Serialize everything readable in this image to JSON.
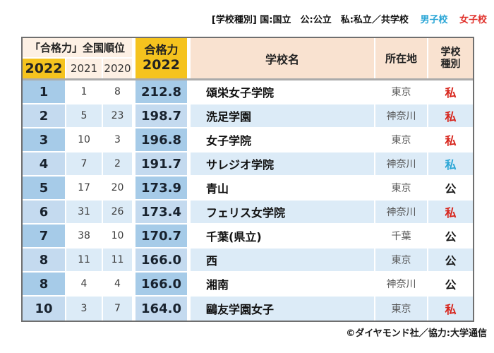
{
  "legend": {
    "types_label": "[学校種別] 国:国立　公:公立　私:私立／共学校",
    "boys_label": "男子校",
    "girls_label": "女子校"
  },
  "header": {
    "rank_group": "「合格力」全国順位",
    "y2022": "2022",
    "y2021": "2021",
    "y2020": "2020",
    "power_line1": "合格力",
    "power_line2": "2022",
    "school": "学校名",
    "location": "所在地",
    "type_line1": "学校",
    "type_line2": "種別"
  },
  "rows": [
    {
      "rank_2022": "1",
      "rank_2021": "1",
      "rank_2020": "8",
      "score": "212.8",
      "school": "頌栄女子学院",
      "location": "東京",
      "type": "私",
      "type_color": "red"
    },
    {
      "rank_2022": "2",
      "rank_2021": "5",
      "rank_2020": "23",
      "score": "198.7",
      "school": "洗足学園",
      "location": "神奈川",
      "type": "私",
      "type_color": "red"
    },
    {
      "rank_2022": "3",
      "rank_2021": "10",
      "rank_2020": "3",
      "score": "196.8",
      "school": "女子学院",
      "location": "東京",
      "type": "私",
      "type_color": "red"
    },
    {
      "rank_2022": "4",
      "rank_2021": "7",
      "rank_2020": "2",
      "score": "191.7",
      "school": "サレジオ学院",
      "location": "神奈川",
      "type": "私",
      "type_color": "blue"
    },
    {
      "rank_2022": "5",
      "rank_2021": "17",
      "rank_2020": "20",
      "score": "173.9",
      "school": "青山",
      "location": "東京",
      "type": "公",
      "type_color": "black"
    },
    {
      "rank_2022": "6",
      "rank_2021": "31",
      "rank_2020": "26",
      "score": "173.4",
      "school": "フェリス女学院",
      "location": "神奈川",
      "type": "私",
      "type_color": "red"
    },
    {
      "rank_2022": "7",
      "rank_2021": "38",
      "rank_2020": "10",
      "score": "170.7",
      "school": "千葉(県立)",
      "location": "千葉",
      "type": "公",
      "type_color": "black"
    },
    {
      "rank_2022": "8",
      "rank_2021": "11",
      "rank_2020": "11",
      "score": "166.0",
      "school": "西",
      "location": "東京",
      "type": "公",
      "type_color": "black"
    },
    {
      "rank_2022": "8",
      "rank_2021": "4",
      "rank_2020": "4",
      "score": "166.0",
      "school": "湘南",
      "location": "神奈川",
      "type": "公",
      "type_color": "black"
    },
    {
      "rank_2022": "10",
      "rank_2021": "3",
      "rank_2020": "7",
      "score": "164.0",
      "school": "鷗友学園女子",
      "location": "東京",
      "type": "私",
      "type_color": "red"
    }
  ],
  "credit": "©ダイヤモンド社／協力:大学通信",
  "colors": {
    "gold": "#f5c31e",
    "peach_light": "#fdf0e4",
    "peach_dark": "#f9e2d0",
    "row_highlight_blue": "#a6cbe8",
    "row_highlight_blue_alt": "#c4daef",
    "row_light_blue": "#dcebf7",
    "boys_blue": "#2aa6d6",
    "girls_red": "#e0302a",
    "private_red": "#d7251c",
    "separator_gray": "#ababab"
  },
  "chart_data": {
    "type": "table",
    "title": "「合格力」全国順位 2022",
    "columns": [
      "2022順位",
      "2021順位",
      "2020順位",
      "合格力2022",
      "学校名",
      "所在地",
      "学校種別"
    ],
    "rows": [
      [
        "1",
        "1",
        "8",
        "212.8",
        "頌栄女子学院",
        "東京",
        "私(女子校)"
      ],
      [
        "2",
        "5",
        "23",
        "198.7",
        "洗足学園",
        "神奈川",
        "私(女子校)"
      ],
      [
        "3",
        "10",
        "3",
        "196.8",
        "女子学院",
        "東京",
        "私(女子校)"
      ],
      [
        "4",
        "7",
        "2",
        "191.7",
        "サレジオ学院",
        "神奈川",
        "私(男子校)"
      ],
      [
        "5",
        "17",
        "20",
        "173.9",
        "青山",
        "東京",
        "公"
      ],
      [
        "6",
        "31",
        "26",
        "173.4",
        "フェリス女学院",
        "神奈川",
        "私(女子校)"
      ],
      [
        "7",
        "38",
        "10",
        "170.7",
        "千葉(県立)",
        "千葉",
        "公"
      ],
      [
        "8",
        "11",
        "11",
        "166.0",
        "西",
        "東京",
        "公"
      ],
      [
        "8",
        "4",
        "4",
        "166.0",
        "湘南",
        "神奈川",
        "公"
      ],
      [
        "10",
        "3",
        "7",
        "164.0",
        "鷗友学園女子",
        "東京",
        "私(女子校)"
      ]
    ]
  }
}
